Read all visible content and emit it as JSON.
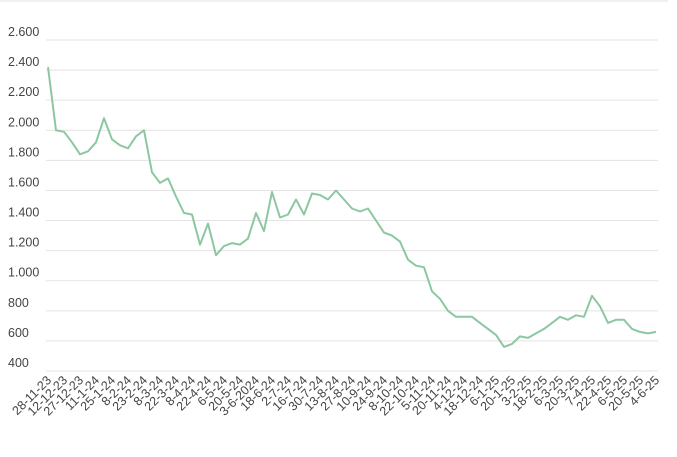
{
  "chart_data": {
    "type": "line",
    "categories": [
      "28-11-23",
      null,
      "12-12-23",
      null,
      "27-12-23",
      null,
      "11-1-24",
      null,
      "25-1-24",
      null,
      "8-2-24",
      null,
      "23-2-24",
      null,
      "8-3-24",
      null,
      "22-3-24",
      null,
      "8-4-24",
      null,
      "22-4-24",
      null,
      "6-5-24",
      null,
      "20-5-24",
      null,
      "3-6-2024",
      null,
      "18-6-24",
      null,
      "2-7-24",
      null,
      "16-7-24",
      null,
      "30-7-24",
      null,
      "13-8-24",
      null,
      "27-8-24",
      null,
      "10-9-24",
      null,
      "24-9-24",
      null,
      "8-10-24",
      null,
      "22-10-24",
      null,
      "5-11-24",
      null,
      "20-11-24",
      null,
      "4-12-24",
      null,
      "18-12-24",
      null,
      "6-1-25",
      null,
      "20-1-25",
      null,
      "3-2-25",
      null,
      "18-2-25",
      null,
      "6-3-25",
      null,
      "20-3-25",
      null,
      "7-4-25",
      null,
      "22-4-25",
      null,
      "6-5-25",
      null,
      "20-5-25",
      null,
      "4-6-25"
    ],
    "series": [
      {
        "color": "#8cc7a1",
        "values": [
          2420,
          2000,
          1990,
          1920,
          1840,
          1860,
          1920,
          2080,
          1940,
          1900,
          1880,
          1960,
          2000,
          1720,
          1650,
          1680,
          1560,
          1450,
          1440,
          1240,
          1380,
          1170,
          1230,
          1250,
          1240,
          1280,
          1450,
          1330,
          1590,
          1420,
          1440,
          1540,
          1440,
          1580,
          1570,
          1540,
          1600,
          1540,
          1480,
          1460,
          1480,
          1400,
          1320,
          1300,
          1260,
          1140,
          1100,
          1090,
          930,
          880,
          800,
          760,
          760,
          760,
          720,
          680,
          640,
          560,
          580,
          630,
          620,
          650,
          680,
          720,
          760,
          740,
          770,
          760,
          900,
          830,
          720,
          740,
          740,
          680,
          660,
          650,
          660
        ]
      }
    ],
    "ylim": [
      400,
      2600
    ],
    "yticks": [
      {
        "value": 2600,
        "label": "2.600"
      },
      {
        "value": 2400,
        "label": "2.400"
      },
      {
        "value": 2200,
        "label": "2.200"
      },
      {
        "value": 2000,
        "label": "2.000"
      },
      {
        "value": 1800,
        "label": "1.800"
      },
      {
        "value": 1600,
        "label": "1.600"
      },
      {
        "value": 1400,
        "label": "1.400"
      },
      {
        "value": 1200,
        "label": "1.200"
      },
      {
        "value": 1000,
        "label": "1.000"
      },
      800,
      600,
      400
    ],
    "grid": true
  }
}
